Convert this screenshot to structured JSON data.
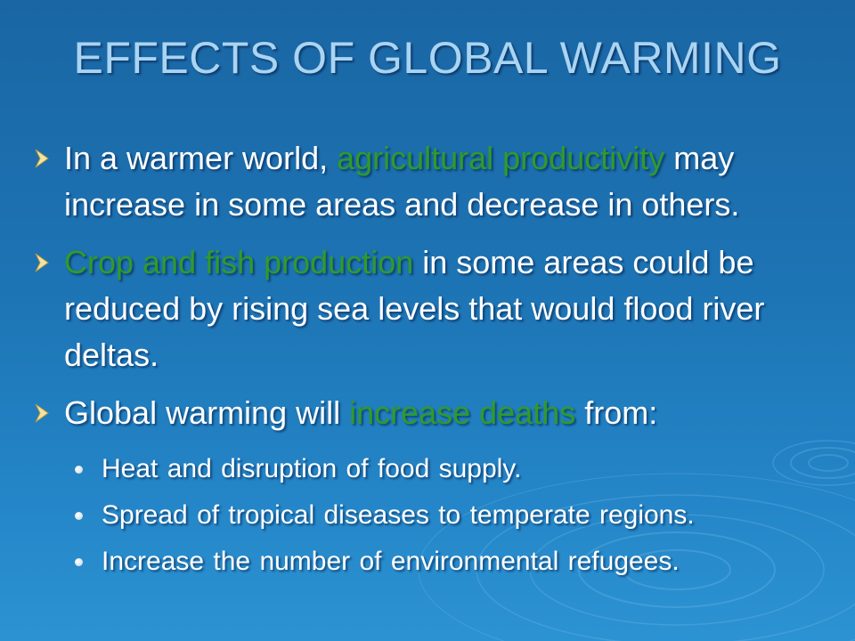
{
  "slide": {
    "title": "EFFECTS OF GLOBAL WARMING",
    "bullets": [
      {
        "pre": "In a warmer world, ",
        "highlight": "agricultural productivity",
        "post": " may increase in some areas and decrease in others."
      },
      {
        "pre": "",
        "highlight": "Crop and fish production",
        "post": " in some areas could be reduced by rising sea levels that would flood river deltas."
      },
      {
        "pre": "Global warming will ",
        "highlight": "increase deaths",
        "post": " from:",
        "subitems": [
          "Heat and disruption of food supply.",
          "Spread of tropical diseases to temperate regions.",
          "Increase the number of environmental refugees."
        ]
      }
    ]
  },
  "colors": {
    "background_top": "#1a66a4",
    "background_bottom": "#2c93d2",
    "title": "#a9d4f2",
    "text": "#ffffff",
    "highlight": "#2f9b2a"
  },
  "icons": {
    "bullet": "arrow-bullet-icon",
    "sub_bullet": "round-bullet-icon",
    "decoration": "water-ripple-decoration"
  }
}
